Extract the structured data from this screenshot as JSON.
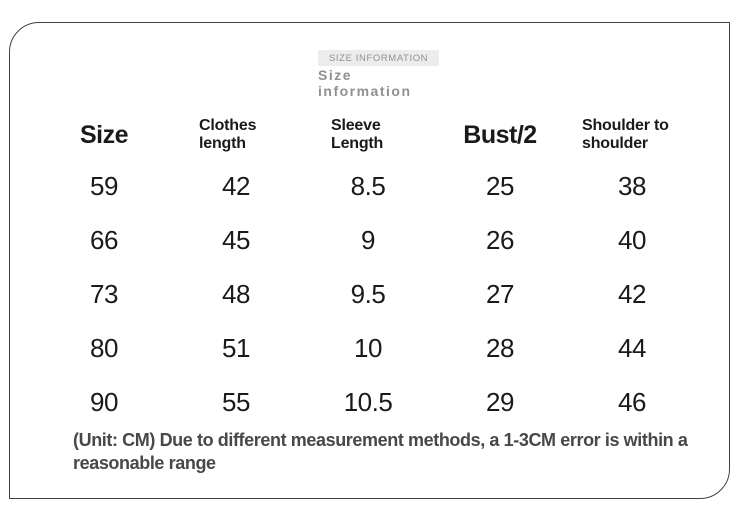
{
  "title": {
    "eyebrow": "SIZE INFORMATION",
    "heading": "Size information"
  },
  "chart_data": {
    "type": "table",
    "title": "Size information",
    "unit": "CM",
    "columns": [
      "Size",
      "Clothes length",
      "Sleeve Length",
      "Bust/2",
      "Shoulder to shoulder"
    ],
    "rows": [
      [
        59,
        42,
        8.5,
        25,
        38
      ],
      [
        66,
        45,
        9,
        26,
        40
      ],
      [
        73,
        48,
        9.5,
        27,
        42
      ],
      [
        80,
        51,
        10,
        28,
        44
      ],
      [
        90,
        55,
        10.5,
        29,
        46
      ]
    ]
  },
  "footer": {
    "note": "(Unit: CM) Due to different measurement methods, a 1-3CM error is within a reasonable range"
  },
  "colors": {
    "text": "#1a1a1a",
    "muted": "#909090",
    "note": "#484848",
    "border": "#424242",
    "eyebrow_bg": "#ececec",
    "background": "#ffffff"
  }
}
